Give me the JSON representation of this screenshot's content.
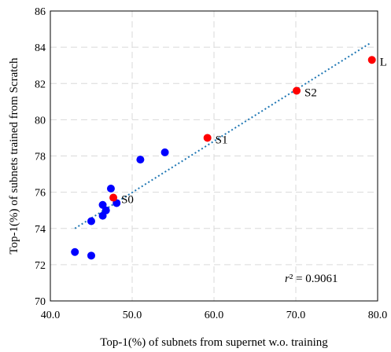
{
  "chart_data": {
    "type": "scatter",
    "xlabel": "Top-1(%) of subnets from supernet w.o. training",
    "ylabel": "Top-1(%) of subnets trained from Scratch",
    "xlim": [
      40,
      80
    ],
    "ylim": [
      70,
      86
    ],
    "xticks": [
      "40.0",
      "50.0",
      "60.0",
      "70.0",
      "80.0"
    ],
    "yticks": [
      "70",
      "72",
      "74",
      "76",
      "78",
      "80",
      "82",
      "84",
      "86"
    ],
    "grid": "dashed",
    "series": [
      {
        "color": "#0000ff",
        "points": [
          {
            "x": 43.0,
            "y": 72.7
          },
          {
            "x": 45.0,
            "y": 72.5
          },
          {
            "x": 45.0,
            "y": 74.4
          },
          {
            "x": 46.4,
            "y": 74.7
          },
          {
            "x": 46.8,
            "y": 75.0
          },
          {
            "x": 46.4,
            "y": 75.3
          },
          {
            "x": 48.1,
            "y": 75.4
          },
          {
            "x": 47.4,
            "y": 76.2
          },
          {
            "x": 51.0,
            "y": 77.8
          },
          {
            "x": 54.0,
            "y": 78.2
          }
        ]
      },
      {
        "color": "#ff0000",
        "points": [
          {
            "x": 47.7,
            "y": 75.7,
            "label": "S0"
          },
          {
            "x": 59.2,
            "y": 79.0,
            "label": "S1"
          },
          {
            "x": 70.1,
            "y": 81.6,
            "label": "S2"
          },
          {
            "x": 79.3,
            "y": 83.3,
            "label": "L"
          }
        ]
      }
    ],
    "trendline": {
      "style": "dotted",
      "color": "#1f77b4",
      "x": [
        43.0,
        79.0
      ],
      "y": [
        74.0,
        84.2
      ]
    },
    "annotation": {
      "r_symbol": "r",
      "rest": "² = 0.9061"
    }
  }
}
